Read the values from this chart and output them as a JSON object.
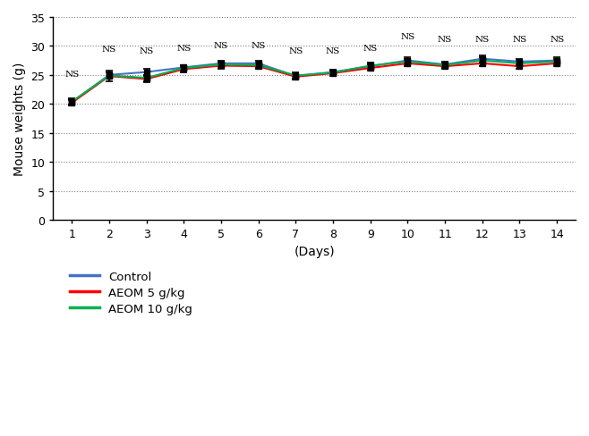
{
  "days": [
    1,
    2,
    3,
    4,
    5,
    6,
    7,
    8,
    9,
    10,
    11,
    12,
    13,
    14
  ],
  "control": [
    20.3,
    25.0,
    25.5,
    26.3,
    27.0,
    27.0,
    24.8,
    25.5,
    26.5,
    27.5,
    26.8,
    27.8,
    27.3,
    27.5
  ],
  "aeom5": [
    20.2,
    24.8,
    24.3,
    26.0,
    26.6,
    26.5,
    24.7,
    25.3,
    26.2,
    27.0,
    26.5,
    27.0,
    26.5,
    27.0
  ],
  "aeom10": [
    20.4,
    24.9,
    24.5,
    26.2,
    26.8,
    26.7,
    24.9,
    25.4,
    26.6,
    27.3,
    26.7,
    27.5,
    27.0,
    27.3
  ],
  "control_err": [
    0.5,
    0.5,
    0.5,
    0.4,
    0.5,
    0.5,
    0.5,
    0.45,
    0.5,
    0.5,
    0.45,
    0.5,
    0.45,
    0.5
  ],
  "aeom5_err": [
    0.5,
    0.9,
    0.6,
    0.5,
    0.5,
    0.5,
    0.5,
    0.4,
    0.5,
    0.5,
    0.45,
    0.5,
    0.5,
    0.5
  ],
  "aeom10_err": [
    0.5,
    0.6,
    0.55,
    0.5,
    0.5,
    0.5,
    0.5,
    0.45,
    0.5,
    0.5,
    0.45,
    0.5,
    0.5,
    0.5
  ],
  "control_color": "#4472C4",
  "aeom5_color": "#FF0000",
  "aeom10_color": "#00B050",
  "ylabel": "Mouse weights (g)",
  "xlabel": "(Days)",
  "ylim": [
    0,
    35
  ],
  "yticks": [
    0,
    5,
    10,
    15,
    20,
    25,
    30,
    35
  ],
  "ns_positions": [
    1,
    2,
    3,
    4,
    5,
    6,
    7,
    8,
    9,
    10,
    11,
    12,
    13,
    14
  ],
  "ns_y_offsets": [
    24.5,
    28.8,
    28.5,
    29.0,
    29.5,
    29.5,
    28.5,
    28.5,
    29.0,
    31.0,
    30.5,
    30.5,
    30.5,
    30.5
  ],
  "legend_labels": [
    "Control",
    "AEOM 5 g/kg",
    "AEOM 10 g/kg"
  ],
  "legend_colors": [
    "#4472C4",
    "#FF0000",
    "#00B050"
  ]
}
